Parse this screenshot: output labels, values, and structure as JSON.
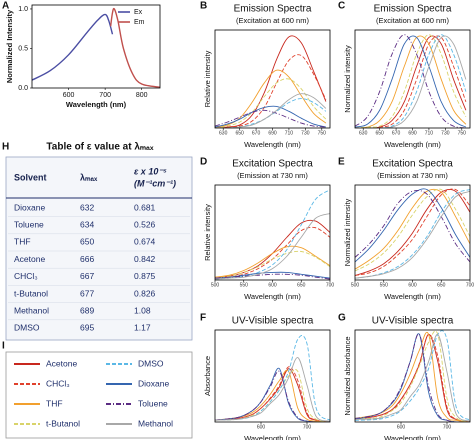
{
  "chart_data": [
    {
      "type": "line",
      "label": "A",
      "xlabel": "Wavelength (nm)",
      "ylabel": "Normalized Intensity",
      "xlim": [
        500,
        850
      ],
      "xticks": [
        600,
        700,
        800
      ],
      "ylim": [
        0,
        1.05
      ],
      "yticks": [
        {
          "value": 0,
          "label": "0.0"
        },
        {
          "value": 0.5,
          "label": "0.5"
        },
        {
          "value": 1,
          "label": "1.0"
        }
      ],
      "series": [
        {
          "name": "Ex",
          "color": "#4b4ea3",
          "x": [
            500,
            550,
            600,
            650,
            680,
            700,
            710,
            720
          ],
          "values": [
            0.1,
            0.22,
            0.42,
            0.7,
            0.86,
            0.93,
            0.85,
            0.68
          ]
        },
        {
          "name": "Em",
          "color": "#c0504d",
          "x": [
            715,
            720,
            725,
            735,
            750,
            775,
            800,
            850
          ],
          "values": [
            0.78,
            0.95,
            1.0,
            0.85,
            0.5,
            0.18,
            0.05,
            0.01
          ]
        }
      ]
    },
    {
      "type": "line",
      "label": "B",
      "title": "Emission Spectra",
      "subtitle": "(Excitation at 600 nm)",
      "xlabel": "Wavelength (nm)",
      "ylabel": "Relative intensity",
      "xlim": [
        620,
        760
      ],
      "xticks": [
        630,
        650,
        670,
        690,
        710,
        730,
        750
      ],
      "ylim": [
        0,
        1
      ],
      "x": [
        620,
        635,
        650,
        665,
        680,
        695,
        710,
        725,
        740,
        755
      ],
      "series": [
        {
          "values": [
            0.0,
            0.01,
            0.03,
            0.13,
            0.36,
            0.7,
            0.93,
            0.87,
            0.58,
            0.27
          ]
        },
        {
          "values": [
            0.0,
            0.01,
            0.02,
            0.07,
            0.21,
            0.46,
            0.69,
            0.74,
            0.55,
            0.29
          ]
        },
        {
          "values": [
            0.01,
            0.03,
            0.1,
            0.26,
            0.46,
            0.59,
            0.52,
            0.33,
            0.15,
            0.05
          ]
        },
        {
          "values": [
            0.0,
            0.02,
            0.06,
            0.16,
            0.32,
            0.46,
            0.5,
            0.4,
            0.22,
            0.09
          ]
        },
        {
          "values": [
            0.0,
            0.0,
            0.01,
            0.04,
            0.09,
            0.17,
            0.26,
            0.3,
            0.26,
            0.17
          ]
        },
        {
          "values": [
            0.01,
            0.04,
            0.09,
            0.16,
            0.21,
            0.22,
            0.17,
            0.1,
            0.04,
            0.01
          ]
        },
        {
          "values": [
            0.02,
            0.06,
            0.11,
            0.16,
            0.18,
            0.15,
            0.1,
            0.05,
            0.02,
            0.01
          ]
        },
        {
          "values": [
            0.0,
            0.0,
            0.01,
            0.03,
            0.09,
            0.18,
            0.29,
            0.35,
            0.31,
            0.2
          ]
        }
      ]
    },
    {
      "type": "line",
      "label": "C",
      "title": "Emission Spectra",
      "subtitle": "(Excitation at 600 nm)",
      "xlabel": "Wavelength (nm)",
      "ylabel": "Normalized intensity",
      "xlim": [
        620,
        760
      ],
      "xticks": [
        630,
        650,
        670,
        690,
        710,
        730,
        750
      ],
      "ylim": [
        0,
        1.05
      ],
      "x": [
        620,
        635,
        650,
        665,
        680,
        695,
        710,
        725,
        740,
        755
      ],
      "series": [
        {
          "values": [
            0.0,
            0.0,
            0.01,
            0.08,
            0.28,
            0.66,
            0.97,
            0.9,
            0.52,
            0.19
          ]
        },
        {
          "values": [
            0.0,
            0.0,
            0.01,
            0.04,
            0.19,
            0.52,
            0.9,
            0.97,
            0.66,
            0.28
          ]
        },
        {
          "values": [
            0.0,
            0.01,
            0.08,
            0.28,
            0.66,
            0.97,
            0.9,
            0.52,
            0.19,
            0.04
          ]
        },
        {
          "values": [
            0.0,
            0.01,
            0.02,
            0.12,
            0.39,
            0.79,
            1.0,
            0.79,
            0.39,
            0.12
          ]
        },
        {
          "values": [
            0.0,
            0.0,
            0.0,
            0.02,
            0.12,
            0.39,
            0.79,
            1.0,
            0.79,
            0.39
          ]
        },
        {
          "values": [
            0.01,
            0.04,
            0.19,
            0.52,
            0.9,
            0.97,
            0.66,
            0.28,
            0.08,
            0.01
          ]
        },
        {
          "values": [
            0.02,
            0.12,
            0.39,
            0.79,
            1.0,
            0.79,
            0.39,
            0.12,
            0.02,
            0.0
          ]
        },
        {
          "values": [
            0.0,
            0.0,
            0.0,
            0.01,
            0.08,
            0.28,
            0.66,
            0.97,
            0.9,
            0.52
          ]
        }
      ]
    },
    {
      "type": "line",
      "label": "D",
      "title": "Excitation Spectra",
      "subtitle": "(Emission at 730 nm)",
      "xlabel": "Wavelength (nm)",
      "ylabel": "Relative intensity",
      "xlim": [
        500,
        700
      ],
      "xticks": [
        500,
        550,
        600,
        650,
        700
      ],
      "ylim": [
        0,
        1
      ],
      "x": [
        500,
        525,
        550,
        575,
        600,
        625,
        650,
        675,
        700
      ],
      "series": [
        {
          "values": [
            0.02,
            0.04,
            0.08,
            0.15,
            0.28,
            0.45,
            0.6,
            0.62,
            0.5
          ]
        },
        {
          "values": [
            0.02,
            0.03,
            0.06,
            0.12,
            0.22,
            0.37,
            0.52,
            0.55,
            0.45
          ]
        },
        {
          "values": [
            0.03,
            0.05,
            0.1,
            0.18,
            0.28,
            0.35,
            0.34,
            0.25,
            0.15
          ]
        },
        {
          "values": [
            0.02,
            0.04,
            0.08,
            0.14,
            0.22,
            0.28,
            0.3,
            0.24,
            0.14
          ]
        },
        {
          "values": [
            0.01,
            0.02,
            0.04,
            0.08,
            0.16,
            0.32,
            0.58,
            0.85,
            0.95
          ]
        },
        {
          "values": [
            0.02,
            0.03,
            0.05,
            0.07,
            0.08,
            0.08,
            0.06,
            0.04,
            0.02
          ]
        },
        {
          "values": [
            0.02,
            0.03,
            0.04,
            0.05,
            0.06,
            0.06,
            0.05,
            0.03,
            0.01
          ]
        },
        {
          "values": [
            0.01,
            0.02,
            0.03,
            0.06,
            0.12,
            0.25,
            0.45,
            0.65,
            0.7
          ]
        }
      ]
    },
    {
      "type": "line",
      "label": "E",
      "title": "Excitation Spectra",
      "subtitle": "(Emission at 730 nm)",
      "xlabel": "Wavelength (nm)",
      "ylabel": "Normalized intensity",
      "xlim": [
        500,
        700
      ],
      "xticks": [
        500,
        550,
        600,
        650,
        700
      ],
      "ylim": [
        0,
        1.05
      ],
      "x": [
        500,
        525,
        550,
        575,
        600,
        625,
        650,
        675,
        700
      ],
      "series": [
        {
          "values": [
            0.05,
            0.1,
            0.18,
            0.32,
            0.52,
            0.78,
            0.97,
            0.98,
            0.75
          ]
        },
        {
          "values": [
            0.05,
            0.08,
            0.15,
            0.28,
            0.45,
            0.7,
            0.94,
            1.0,
            0.82
          ]
        },
        {
          "values": [
            0.12,
            0.22,
            0.35,
            0.55,
            0.8,
            0.98,
            0.97,
            0.7,
            0.4
          ]
        },
        {
          "values": [
            0.1,
            0.18,
            0.3,
            0.48,
            0.72,
            0.92,
            1.0,
            0.78,
            0.48
          ]
        },
        {
          "values": [
            0.02,
            0.04,
            0.08,
            0.15,
            0.28,
            0.48,
            0.75,
            0.95,
            1.0
          ]
        },
        {
          "values": [
            0.2,
            0.35,
            0.55,
            0.78,
            0.95,
            1.0,
            0.8,
            0.5,
            0.25
          ]
        },
        {
          "values": [
            0.25,
            0.4,
            0.6,
            0.85,
            0.98,
            0.95,
            0.7,
            0.4,
            0.2
          ]
        },
        {
          "values": [
            0.02,
            0.04,
            0.07,
            0.13,
            0.25,
            0.45,
            0.7,
            0.92,
            0.98
          ]
        }
      ]
    },
    {
      "type": "line",
      "label": "F",
      "title": "UV-Visible spectra",
      "xlabel": "Wavelength (nm)",
      "ylabel": "Absorbance",
      "xlim": [
        500,
        750
      ],
      "xticks": [
        600,
        700
      ],
      "ylim": [
        0,
        1
      ],
      "x": [
        500,
        550,
        580,
        600,
        620,
        640,
        660,
        680,
        700,
        720,
        750
      ],
      "series": [
        {
          "values": [
            0.02,
            0.04,
            0.08,
            0.15,
            0.25,
            0.38,
            0.58,
            0.4,
            0.08,
            0.02,
            0.0
          ]
        },
        {
          "values": [
            0.02,
            0.04,
            0.08,
            0.15,
            0.26,
            0.4,
            0.6,
            0.45,
            0.1,
            0.02,
            0.0
          ]
        },
        {
          "values": [
            0.02,
            0.05,
            0.1,
            0.18,
            0.3,
            0.45,
            0.55,
            0.15,
            0.03,
            0.01,
            0.0
          ]
        },
        {
          "values": [
            0.02,
            0.03,
            0.07,
            0.12,
            0.22,
            0.35,
            0.5,
            0.55,
            0.15,
            0.03,
            0.0
          ]
        },
        {
          "values": [
            0.02,
            0.03,
            0.06,
            0.12,
            0.22,
            0.35,
            0.55,
            0.9,
            0.85,
            0.15,
            0.02
          ]
        },
        {
          "values": [
            0.02,
            0.05,
            0.12,
            0.22,
            0.4,
            0.58,
            0.2,
            0.04,
            0.01,
            0.0,
            0.0
          ]
        },
        {
          "values": [
            0.02,
            0.05,
            0.12,
            0.22,
            0.38,
            0.55,
            0.22,
            0.05,
            0.01,
            0.0,
            0.0
          ]
        },
        {
          "values": [
            0.02,
            0.03,
            0.06,
            0.1,
            0.2,
            0.3,
            0.48,
            0.7,
            0.4,
            0.06,
            0.01
          ]
        }
      ]
    },
    {
      "type": "line",
      "label": "G",
      "title": "UV-Visible spectra",
      "xlabel": "Wavelength (nm)",
      "ylabel": "Normalized absorbance",
      "xlim": [
        500,
        750
      ],
      "xticks": [
        600,
        700
      ],
      "ylim": [
        0,
        1.05
      ],
      "x": [
        500,
        550,
        580,
        600,
        620,
        640,
        660,
        680,
        700,
        720,
        750
      ],
      "series": [
        {
          "values": [
            0.03,
            0.07,
            0.14,
            0.26,
            0.43,
            0.66,
            1.0,
            0.69,
            0.14,
            0.03,
            0.0
          ]
        },
        {
          "values": [
            0.03,
            0.07,
            0.13,
            0.25,
            0.43,
            0.67,
            1.0,
            0.75,
            0.17,
            0.03,
            0.0
          ]
        },
        {
          "values": [
            0.04,
            0.09,
            0.18,
            0.33,
            0.55,
            0.82,
            1.0,
            0.27,
            0.05,
            0.02,
            0.0
          ]
        },
        {
          "values": [
            0.04,
            0.05,
            0.13,
            0.22,
            0.4,
            0.64,
            0.91,
            1.0,
            0.27,
            0.05,
            0.0
          ]
        },
        {
          "values": [
            0.02,
            0.03,
            0.07,
            0.13,
            0.24,
            0.39,
            0.61,
            1.0,
            0.94,
            0.17,
            0.02
          ]
        },
        {
          "values": [
            0.03,
            0.09,
            0.21,
            0.38,
            0.69,
            1.0,
            0.34,
            0.07,
            0.02,
            0.0,
            0.0
          ]
        },
        {
          "values": [
            0.04,
            0.09,
            0.22,
            0.4,
            0.69,
            1.0,
            0.4,
            0.09,
            0.02,
            0.0,
            0.0
          ]
        },
        {
          "values": [
            0.03,
            0.04,
            0.09,
            0.14,
            0.29,
            0.43,
            0.69,
            1.0,
            0.57,
            0.09,
            0.01
          ]
        }
      ]
    }
  ],
  "table": {
    "label": "H",
    "title": "Table of ε value at λₘₐₓ",
    "headers": [
      "Solvent",
      "λₘₐₓ",
      [
        "ε x 10⁻⁵",
        "(M⁻¹cm⁻¹)"
      ]
    ],
    "rows": [
      [
        "Dioxane",
        632,
        0.681
      ],
      [
        "Toluene",
        634,
        0.526
      ],
      [
        "THF",
        650,
        0.674
      ],
      [
        "Acetone",
        666,
        0.842
      ],
      [
        "CHCl₃",
        667,
        0.875
      ],
      [
        "t-Butanol",
        677,
        0.826
      ],
      [
        "Methanol",
        689,
        1.08
      ],
      [
        "DMSO",
        695,
        1.17
      ]
    ]
  },
  "legend": {
    "label": "I",
    "entries": [
      {
        "name": "Acetone",
        "color": "#c8281e",
        "dash": "solid"
      },
      {
        "name": "CHCl₃",
        "color": "#e0412c",
        "dash": "dashed"
      },
      {
        "name": "THF",
        "color": "#f2a02e",
        "dash": "solid"
      },
      {
        "name": "t-Butanol",
        "color": "#d9d36a",
        "dash": "dashed"
      },
      {
        "name": "DMSO",
        "color": "#5bb8e6",
        "dash": "dashed"
      },
      {
        "name": "Dioxane",
        "color": "#3566b0",
        "dash": "solid"
      },
      {
        "name": "Toluene",
        "color": "#5b2c83",
        "dash": "dashdot"
      },
      {
        "name": "Methanol",
        "color": "#a8a8a8",
        "dash": "solid"
      }
    ]
  }
}
